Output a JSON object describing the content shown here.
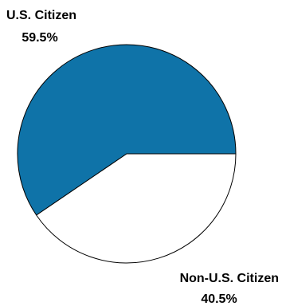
{
  "chart_data": {
    "type": "pie",
    "slices": [
      {
        "label": "U.S. Citizen",
        "value": 59.5,
        "value_label": "59.5%",
        "color": "#0f73a8"
      },
      {
        "label": "Non-U.S. Citizen",
        "value": 40.5,
        "value_label": "40.5%",
        "color": "#ffffff"
      }
    ],
    "outline_color": "#000000"
  }
}
